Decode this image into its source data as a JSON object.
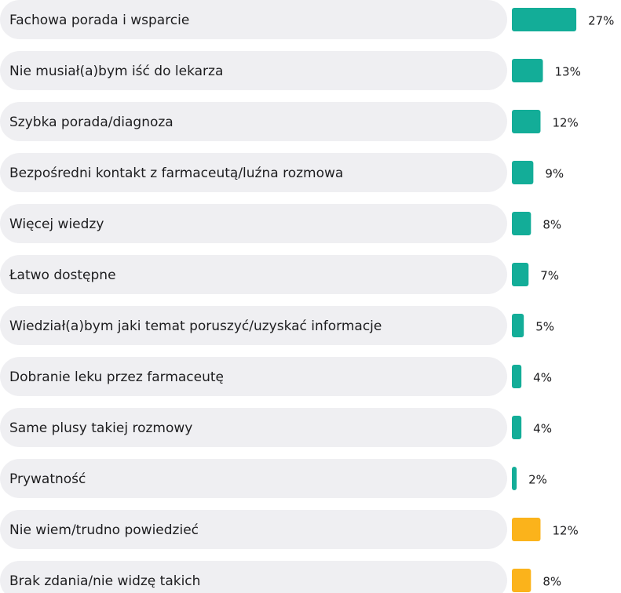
{
  "chart_data": {
    "type": "bar",
    "categories": [
      "Fachowa porada i wsparcie",
      "Nie musiał(a)bym iść do lekarza",
      "Szybka porada/diagnoza",
      "Bezpośredni kontakt z farmaceutą/luźna rozmowa",
      "Więcej  wiedzy",
      "Łatwo dostępne",
      "Wiedział(a)bym jaki temat poruszyć/uzyskać informacje",
      "Dobranie leku przez farmaceutę",
      "Same plusy takiej rozmowy",
      "Prywatność",
      "Nie wiem/trudno powiedzieć",
      "Brak zdania/nie widzę takich"
    ],
    "values": [
      27,
      13,
      12,
      9,
      8,
      7,
      5,
      4,
      4,
      2,
      12,
      8
    ],
    "value_labels": [
      "27%",
      "13%",
      "12%",
      "9%",
      "8%",
      "7%",
      "5%",
      "4%",
      "4%",
      "2%",
      "12%",
      "8%"
    ],
    "colors": [
      "#13ad98",
      "#13ad98",
      "#13ad98",
      "#13ad98",
      "#13ad98",
      "#13ad98",
      "#13ad98",
      "#13ad98",
      "#13ad98",
      "#13ad98",
      "#fbb31b",
      "#fbb31b"
    ]
  }
}
